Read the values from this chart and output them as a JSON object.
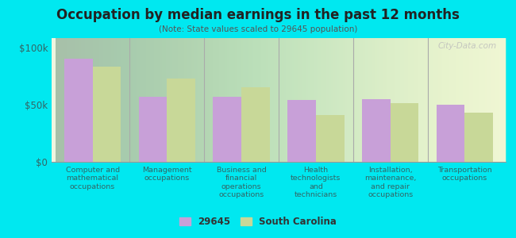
{
  "title": "Occupation by median earnings in the past 12 months",
  "subtitle": "(Note: State values scaled to 29645 population)",
  "categories": [
    "Computer and\nmathematical\noccupations",
    "Management\noccupations",
    "Business and\nfinancial\noperations\noccupations",
    "Health\ntechnologists\nand\ntechnicians",
    "Installation,\nmaintenance,\nand repair\noccupations",
    "Transportation\noccupations"
  ],
  "values_29645": [
    90000,
    57000,
    57000,
    54000,
    55000,
    50000
  ],
  "values_sc": [
    83000,
    73000,
    65000,
    41000,
    51000,
    43000
  ],
  "color_29645": "#c8a0d8",
  "color_sc": "#c8d898",
  "background_outer": "#00e8f0",
  "ylim": [
    0,
    108000
  ],
  "yticks": [
    0,
    50000,
    100000
  ],
  "ytick_labels": [
    "$0",
    "$50k",
    "$100k"
  ],
  "legend_label_1": "29645",
  "legend_label_2": "South Carolina",
  "watermark": "City-Data.com",
  "separator_color": "#aaaaaa",
  "title_color": "#222222",
  "subtitle_color": "#555555",
  "tick_label_color": "#336666"
}
